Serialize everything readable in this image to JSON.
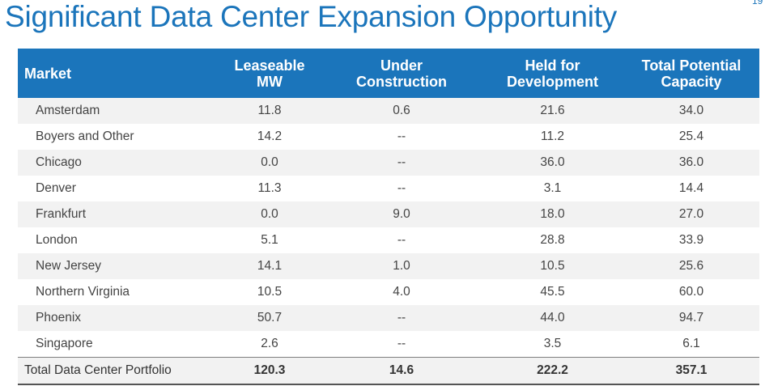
{
  "title": "Significant Data Center Expansion Opportunity",
  "page_number": "19",
  "table": {
    "headers": {
      "market": "Market",
      "leaseable": [
        "Leaseable",
        "MW"
      ],
      "under_construction": [
        "Under",
        "Construction"
      ],
      "held": [
        "Held for",
        "Development"
      ],
      "total": [
        "Total Potential",
        "Capacity"
      ]
    },
    "rows": [
      {
        "market": "Amsterdam",
        "leaseable": "11.8",
        "under_construction": "0.6",
        "held": "21.6",
        "total": "34.0"
      },
      {
        "market": "Boyers and Other",
        "leaseable": "14.2",
        "under_construction": "--",
        "held": "11.2",
        "total": "25.4"
      },
      {
        "market": "Chicago",
        "leaseable": "0.0",
        "under_construction": "--",
        "held": "36.0",
        "total": "36.0"
      },
      {
        "market": "Denver",
        "leaseable": "11.3",
        "under_construction": "--",
        "held": "3.1",
        "total": "14.4"
      },
      {
        "market": "Frankfurt",
        "leaseable": "0.0",
        "under_construction": "9.0",
        "held": "18.0",
        "total": "27.0"
      },
      {
        "market": "London",
        "leaseable": "5.1",
        "under_construction": "--",
        "held": "28.8",
        "total": "33.9"
      },
      {
        "market": "New Jersey",
        "leaseable": "14.1",
        "under_construction": "1.0",
        "held": "10.5",
        "total": "25.6"
      },
      {
        "market": "Northern Virginia",
        "leaseable": "10.5",
        "under_construction": "4.0",
        "held": "45.5",
        "total": "60.0"
      },
      {
        "market": "Phoenix",
        "leaseable": "50.7",
        "under_construction": "--",
        "held": "44.0",
        "total": "94.7"
      },
      {
        "market": "Singapore",
        "leaseable": "2.6",
        "under_construction": "--",
        "held": "3.5",
        "total": "6.1"
      }
    ],
    "total_row": {
      "market": "Total Data Center Portfolio",
      "leaseable": "120.3",
      "under_construction": "14.6",
      "held": "222.2",
      "total": "357.1"
    }
  },
  "colors": {
    "accent": "#1b75bb",
    "row_stripe": "#f2f2f2",
    "text": "#444444"
  }
}
